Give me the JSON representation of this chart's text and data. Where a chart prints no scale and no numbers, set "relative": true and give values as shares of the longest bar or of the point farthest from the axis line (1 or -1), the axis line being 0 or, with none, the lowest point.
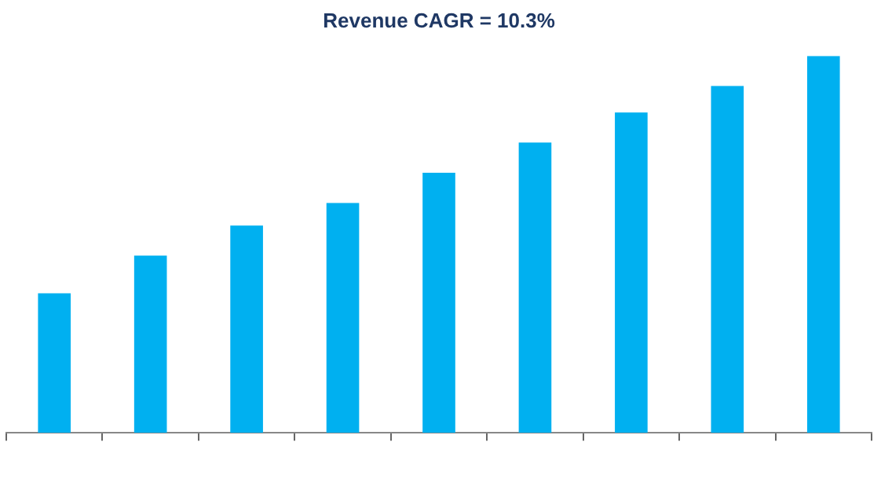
{
  "chart_data": {
    "type": "bar",
    "title": "Revenue CAGR = 10.3%",
    "relative": true,
    "categories": [
      null,
      null,
      null,
      null,
      null,
      null,
      null,
      null,
      null
    ],
    "values": [
      0.37,
      0.47,
      0.55,
      0.61,
      0.69,
      0.77,
      0.85,
      0.92,
      1
    ],
    "color": "#00b0f0",
    "legend": false,
    "grid": false
  }
}
